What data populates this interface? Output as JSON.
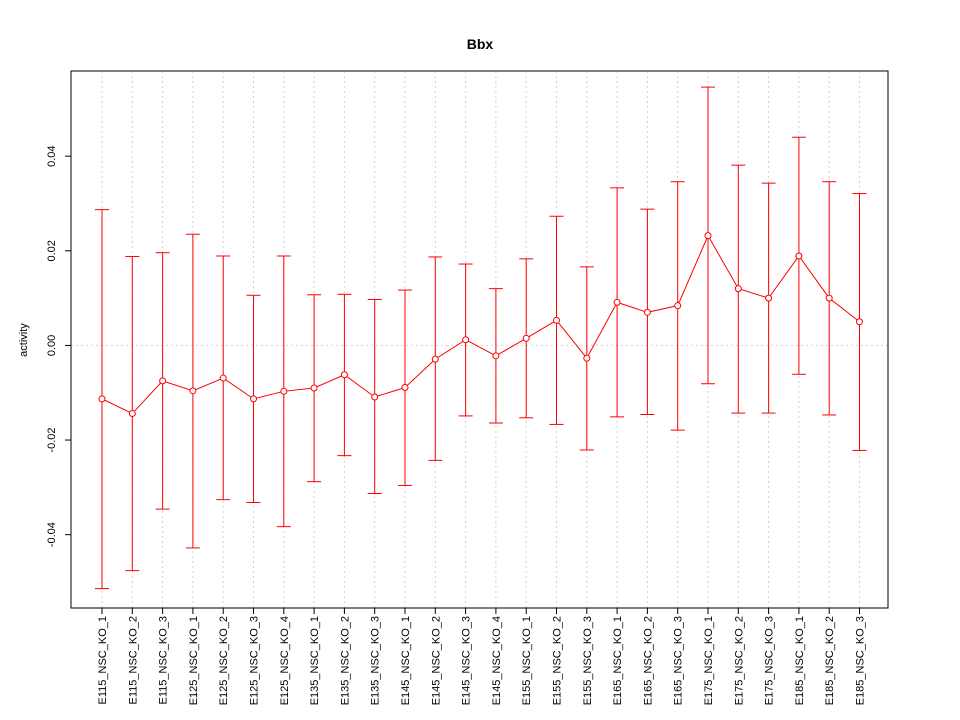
{
  "chart_data": {
    "type": "line",
    "title": "Bbx",
    "xlabel": "",
    "ylabel": "activity",
    "ylim": [
      -0.0555,
      0.058
    ],
    "yticks": [
      -0.04,
      -0.02,
      0.0,
      0.02,
      0.04
    ],
    "ytick_labels": [
      "-0.04",
      "-0.02",
      "0.00",
      "0.02",
      "0.04"
    ],
    "grid": true,
    "color": "#ff0000",
    "grid_color": "#d3d3d3",
    "categories": [
      "E115_NSC_KO_1",
      "E115_NSC_KO_2",
      "E115_NSC_KO_3",
      "E125_NSC_KO_1",
      "E125_NSC_KO_2",
      "E125_NSC_KO_3",
      "E125_NSC_KO_4",
      "E135_NSC_KO_1",
      "E135_NSC_KO_2",
      "E135_NSC_KO_3",
      "E145_NSC_KO_1",
      "E145_NSC_KO_2",
      "E145_NSC_KO_3",
      "E145_NSC_KO_4",
      "E155_NSC_KO_1",
      "E155_NSC_KO_2",
      "E155_NSC_KO_3",
      "E165_NSC_KO_1",
      "E165_NSC_KO_2",
      "E165_NSC_KO_3",
      "E175_NSC_KO_1",
      "E175_NSC_KO_2",
      "E175_NSC_KO_3",
      "E185_NSC_KO_1",
      "E185_NSC_KO_2",
      "E185_NSC_KO_3"
    ],
    "values": [
      -0.0113,
      -0.0144,
      -0.0075,
      -0.0096,
      -0.0069,
      -0.0113,
      -0.0097,
      -0.009,
      -0.0062,
      -0.0109,
      -0.0089,
      -0.0029,
      0.0012,
      -0.0022,
      0.0015,
      0.0053,
      -0.0027,
      0.0091,
      0.007,
      0.0084,
      0.0232,
      0.012,
      0.01,
      0.0189,
      0.01,
      0.005
    ],
    "upper": [
      0.0287,
      0.0188,
      0.0196,
      0.0235,
      0.0189,
      0.0106,
      0.0189,
      0.0107,
      0.0108,
      0.0097,
      0.0117,
      0.0187,
      0.0172,
      0.012,
      0.0183,
      0.0273,
      0.0166,
      0.0333,
      0.0288,
      0.0346,
      0.0546,
      0.0381,
      0.0343,
      0.044,
      0.0346,
      0.0321
    ],
    "lower": [
      -0.0514,
      -0.0476,
      -0.0346,
      -0.0428,
      -0.0326,
      -0.0332,
      -0.0383,
      -0.0288,
      -0.0233,
      -0.0313,
      -0.0296,
      -0.0243,
      -0.0149,
      -0.0164,
      -0.0153,
      -0.0167,
      -0.0221,
      -0.0151,
      -0.0146,
      -0.0179,
      -0.0081,
      -0.0143,
      -0.0143,
      -0.0061,
      -0.0147,
      -0.0222
    ]
  }
}
